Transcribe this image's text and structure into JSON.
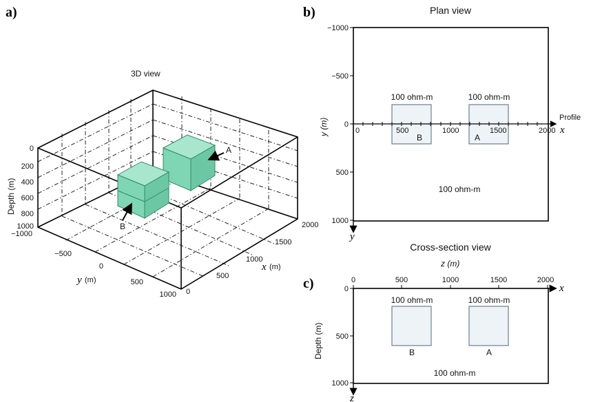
{
  "panel_a": {
    "label": "a)",
    "title": "3D view",
    "depth_axis_label": "Depth (m)",
    "depth_ticks": [
      "0",
      "200",
      "400",
      "600",
      "800",
      "1000"
    ],
    "y_axis_label": "y",
    "y_axis_unit": "(m)",
    "y_ticks": [
      "−1000",
      "−500",
      "0",
      "500",
      "1000"
    ],
    "x_axis_label": "x",
    "x_axis_unit": "(m)",
    "x_ticks": [
      "0",
      "500",
      "1000",
      "1500",
      "2000"
    ],
    "block_a_label": "A",
    "block_b_label": "B",
    "block_color": "#7fd6b4"
  },
  "panel_b": {
    "label": "b)",
    "title": "Plan view",
    "y_axis_label": "y (m)",
    "y_ticks": [
      "−1000",
      "−500",
      "0",
      "500",
      "1000"
    ],
    "x_ticks": [
      "0",
      "500",
      "1000",
      "1500",
      "2000"
    ],
    "x_axis_letter": "x",
    "y_axis_letter": "y",
    "profile_label": "Profile",
    "block_b_resistivity": "100 ohm-m",
    "block_a_resistivity": "100 ohm-m",
    "block_b_label": "B",
    "block_a_label": "A",
    "background_resistivity": "100 ohm-m",
    "block_color": "#eef3f7"
  },
  "panel_c": {
    "label": "c)",
    "title": "Cross-section view",
    "top_axis_label": "z (m)",
    "x_ticks": [
      "0",
      "500",
      "1000",
      "1500",
      "2000"
    ],
    "x_axis_letter": "x",
    "z_axis_letter": "z",
    "depth_axis_label": "Depth (m)",
    "depth_ticks": [
      "0",
      "500",
      "1000"
    ],
    "block_b_resistivity": "100 ohm-m",
    "block_a_resistivity": "100 ohm-m",
    "block_b_label": "B",
    "block_a_label": "A",
    "background_resistivity": "100 ohm-m",
    "block_color": "#eef3f7"
  }
}
